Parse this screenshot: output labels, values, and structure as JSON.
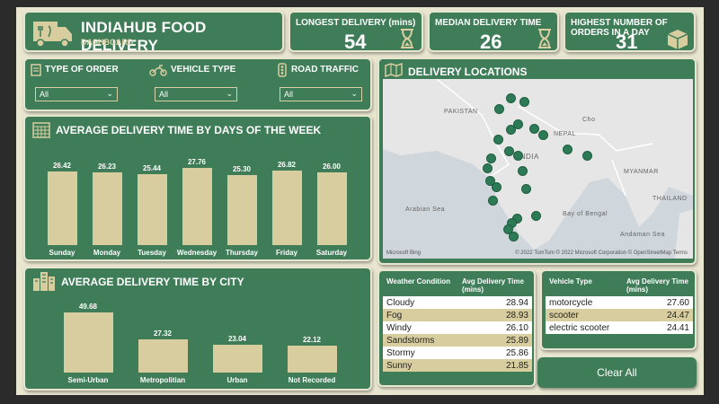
{
  "header": {
    "title": "INDIAHUB FOOD DELIVERY",
    "subtitle": "DASHBOARD",
    "icon": "delivery-truck-icon"
  },
  "kpis": [
    {
      "label": "LONGEST DELIVERY (mins)",
      "value": "54",
      "icon": "hourglass-icon"
    },
    {
      "label": "MEDIAN DELIVERY TIME",
      "value": "26",
      "icon": "hourglass-icon"
    },
    {
      "label": "HIGHEST NUMBER OF ORDERS IN A DAY",
      "value": "31",
      "icon": "package-icon"
    }
  ],
  "filters": [
    {
      "label": "TYPE OF ORDER",
      "value": "All",
      "icon": "order-icon"
    },
    {
      "label": "VEHICLE TYPE",
      "value": "All",
      "icon": "motorbike-icon"
    },
    {
      "label": "ROAD TRAFFIC",
      "value": "All",
      "icon": "traffic-light-icon"
    }
  ],
  "map": {
    "title": "DELIVERY LOCATIONS",
    "labels": [
      "PAKISTAN",
      "INDIA",
      "Arabian Sea",
      "Bay of Bengal",
      "NEPAL",
      "MYANMAR",
      "THAILAND",
      "Andaman Sea",
      "Cho"
    ],
    "attribution": "© 2022 TomTom  © 2022 Microsoft Corporation  © OpenStreetMap  Terms",
    "logo": "Microsoft Bing"
  },
  "chart_data": [
    {
      "type": "bar",
      "title": "AVERAGE DELIVERY TIME BY DAYS OF THE WEEK",
      "categories": [
        "Sunday",
        "Monday",
        "Tuesday",
        "Wednesday",
        "Thursday",
        "Friday",
        "Saturday"
      ],
      "values": [
        26.42,
        26.23,
        25.44,
        27.76,
        25.3,
        26.82,
        26.0
      ],
      "value_labels": [
        "26.42",
        "26.23",
        "25.44",
        "27.76",
        "25.30",
        "26.82",
        "26.00"
      ],
      "ylim": [
        0,
        27.76
      ],
      "color": "#d7cd9f"
    },
    {
      "type": "bar",
      "title": "AVERAGE DELIVERY TIME BY CITY",
      "categories": [
        "Semi-Urban",
        "Metropolitian",
        "Urban",
        "Not Recorded"
      ],
      "values": [
        49.68,
        27.32,
        23.04,
        22.12
      ],
      "value_labels": [
        "49.68",
        "27.32",
        "23.04",
        "22.12"
      ],
      "ylim": [
        0,
        49.68
      ],
      "color": "#d7cd9f"
    }
  ],
  "weather_table": {
    "headers": [
      "Weather Condition",
      "Avg Delivery Time (mins)"
    ],
    "rows": [
      [
        "Cloudy",
        "28.94"
      ],
      [
        "Fog",
        "28.93"
      ],
      [
        "Windy",
        "26.10"
      ],
      [
        "Sandstorms",
        "25.89"
      ],
      [
        "Stormy",
        "25.86"
      ],
      [
        "Sunny",
        "21.85"
      ]
    ]
  },
  "vehicle_table": {
    "headers": [
      "Vehicle Type",
      "Avg Delivery Time (mins)"
    ],
    "rows": [
      [
        "motorcycle",
        "27.60"
      ],
      [
        "scooter",
        "24.47"
      ],
      [
        "electric scooter",
        "24.41"
      ]
    ]
  },
  "clear_button": "Clear All",
  "colors": {
    "card": "#3f7d59",
    "bar": "#d7cd9f",
    "background": "#e9e6d0",
    "dot": "#2d7a56"
  }
}
